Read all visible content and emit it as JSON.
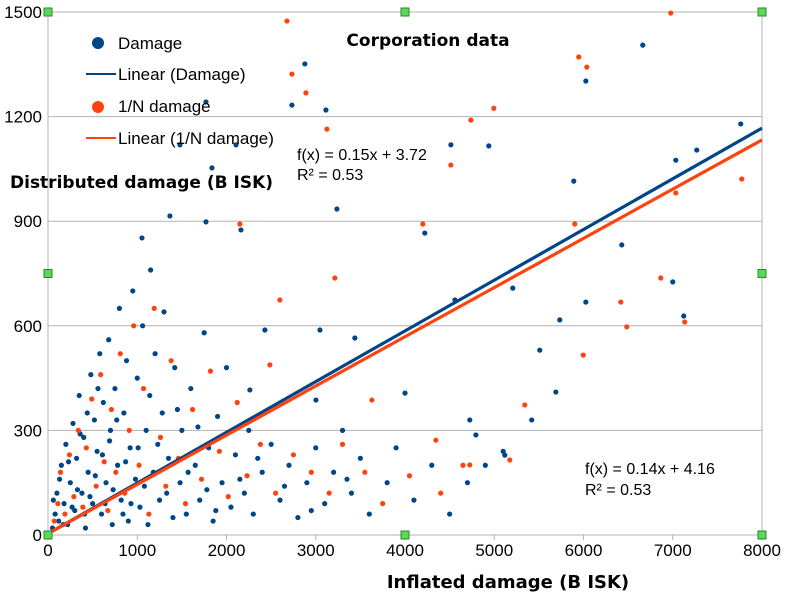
{
  "chart_data": {
    "type": "scatter",
    "title": "Corporation data",
    "xlabel": "Inflated damage (B ISK)",
    "ylabel": "Distributed damage (B ISK)",
    "xlim": [
      0,
      8000
    ],
    "ylim": [
      0,
      1500
    ],
    "xticks": [
      "0",
      "1000",
      "2000",
      "3000",
      "4000",
      "5000",
      "6000",
      "7000",
      "8000"
    ],
    "yticks": [
      "0",
      "300",
      "600",
      "900",
      "1200",
      "1500"
    ],
    "grid": "horizontal",
    "legend_placement": "top-left",
    "legend": [
      "Damage",
      "Linear (Damage)",
      "1/N damage",
      "Linear (1/N damage)"
    ],
    "series": [
      {
        "name": "Damage",
        "color": "#004586",
        "points": [
          [
            6664,
            1405
          ],
          [
            2878,
            1351
          ],
          [
            2733,
            1233
          ],
          [
            3114,
            1219
          ],
          [
            6026,
            1302
          ],
          [
            4939,
            1116
          ],
          [
            4514,
            1119
          ],
          [
            7269,
            1104
          ],
          [
            7034,
            1075
          ],
          [
            7762,
            1179
          ],
          [
            5891,
            1015
          ],
          [
            6429,
            832
          ],
          [
            7000,
            726
          ],
          [
            7123,
            628
          ],
          [
            3237,
            935
          ],
          [
            4222,
            866
          ],
          [
            1053,
            852
          ],
          [
            1366,
            915
          ],
          [
            1770,
            898
          ],
          [
            2162,
            875
          ],
          [
            2106,
            1119
          ],
          [
            1770,
            1242
          ],
          [
            1837,
            1053
          ],
          [
            1478,
            1119
          ],
          [
            6026,
            668
          ],
          [
            5734,
            617
          ],
          [
            5510,
            530
          ],
          [
            5690,
            410
          ],
          [
            5420,
            330
          ],
          [
            5208,
            708
          ],
          [
            4560,
            674
          ],
          [
            3047,
            588
          ],
          [
            3438,
            565
          ],
          [
            2430,
            588
          ],
          [
            2262,
            416
          ],
          [
            3002,
            387
          ],
          [
            4000,
            407
          ],
          [
            4726,
            330
          ],
          [
            4794,
            287
          ],
          [
            5118,
            229
          ],
          [
            50,
            20
          ],
          [
            80,
            60
          ],
          [
            100,
            120
          ],
          [
            120,
            40
          ],
          [
            150,
            200
          ],
          [
            180,
            90
          ],
          [
            200,
            260
          ],
          [
            220,
            30
          ],
          [
            250,
            150
          ],
          [
            280,
            320
          ],
          [
            300,
            70
          ],
          [
            320,
            220
          ],
          [
            350,
            400
          ],
          [
            380,
            120
          ],
          [
            400,
            280
          ],
          [
            420,
            20
          ],
          [
            450,
            180
          ],
          [
            480,
            460
          ],
          [
            500,
            90
          ],
          [
            520,
            330
          ],
          [
            550,
            240
          ],
          [
            580,
            520
          ],
          [
            600,
            60
          ],
          [
            620,
            380
          ],
          [
            650,
            150
          ],
          [
            680,
            560
          ],
          [
            700,
            300
          ],
          [
            720,
            30
          ],
          [
            750,
            420
          ],
          [
            780,
            200
          ],
          [
            800,
            650
          ],
          [
            820,
            100
          ],
          [
            850,
            350
          ],
          [
            880,
            500
          ],
          [
            900,
            40
          ],
          [
            920,
            250
          ],
          [
            950,
            700
          ],
          [
            980,
            160
          ],
          [
            1000,
            450
          ],
          [
            1030,
            80
          ],
          [
            1060,
            600
          ],
          [
            1100,
            300
          ],
          [
            1120,
            30
          ],
          [
            1150,
            760
          ],
          [
            1180,
            180
          ],
          [
            1200,
            520
          ],
          [
            1250,
            100
          ],
          [
            1280,
            350
          ],
          [
            1300,
            640
          ],
          [
            1350,
            220
          ],
          [
            1400,
            50
          ],
          [
            1420,
            480
          ],
          [
            1480,
            150
          ],
          [
            1500,
            300
          ],
          [
            1550,
            60
          ],
          [
            1600,
            420
          ],
          [
            1650,
            200
          ],
          [
            1700,
            100
          ],
          [
            1750,
            580
          ],
          [
            1800,
            250
          ],
          [
            1850,
            40
          ],
          [
            1900,
            340
          ],
          [
            1950,
            150
          ],
          [
            2000,
            480
          ],
          [
            2050,
            80
          ],
          [
            2100,
            230
          ],
          [
            2200,
            120
          ],
          [
            2250,
            300
          ],
          [
            2300,
            60
          ],
          [
            2400,
            180
          ],
          [
            2500,
            260
          ],
          [
            2600,
            100
          ],
          [
            2700,
            200
          ],
          [
            2800,
            50
          ],
          [
            2900,
            150
          ],
          [
            3000,
            250
          ],
          [
            3100,
            90
          ],
          [
            3200,
            180
          ],
          [
            3300,
            300
          ],
          [
            3400,
            120
          ],
          [
            3500,
            220
          ],
          [
            3600,
            60
          ],
          [
            3800,
            150
          ],
          [
            3900,
            250
          ],
          [
            4100,
            100
          ],
          [
            4300,
            200
          ],
          [
            4500,
            60
          ],
          [
            4700,
            150
          ],
          [
            4900,
            200
          ],
          [
            5100,
            240
          ],
          [
            60,
            100
          ],
          [
            130,
            160
          ],
          [
            170,
            30
          ],
          [
            230,
            210
          ],
          [
            270,
            80
          ],
          [
            330,
            130
          ],
          [
            360,
            290
          ],
          [
            410,
            60
          ],
          [
            440,
            350
          ],
          [
            470,
            110
          ],
          [
            530,
            170
          ],
          [
            560,
            420
          ],
          [
            610,
            230
          ],
          [
            640,
            90
          ],
          [
            690,
            270
          ],
          [
            730,
            130
          ],
          [
            770,
            330
          ],
          [
            840,
            60
          ],
          [
            870,
            210
          ],
          [
            930,
            90
          ],
          [
            1010,
            250
          ],
          [
            1080,
            140
          ],
          [
            1140,
            400
          ],
          [
            1230,
            260
          ],
          [
            1330,
            120
          ],
          [
            1450,
            360
          ],
          [
            1570,
            180
          ],
          [
            1680,
            310
          ],
          [
            1780,
            130
          ],
          [
            1880,
            70
          ],
          [
            2150,
            160
          ],
          [
            2350,
            220
          ],
          [
            2650,
            140
          ],
          [
            2950,
            70
          ],
          [
            3350,
            160
          ]
        ]
      },
      {
        "name": "1/N damage",
        "color": "#ff420e",
        "points": [
          [
            2677,
            1474
          ],
          [
            6978,
            1497
          ],
          [
            5947,
            1371
          ],
          [
            6037,
            1342
          ],
          [
            4995,
            1224
          ],
          [
            2733,
            1322
          ],
          [
            2890,
            1268
          ],
          [
            4738,
            1190
          ],
          [
            4514,
            1061
          ],
          [
            3125,
            1164
          ],
          [
            2150,
            892
          ],
          [
            4200,
            892
          ],
          [
            5902,
            892
          ],
          [
            7034,
            981
          ],
          [
            6866,
            737
          ],
          [
            6418,
            668
          ],
          [
            6485,
            597
          ],
          [
            7134,
            611
          ],
          [
            3214,
            737
          ],
          [
            2598,
            674
          ],
          [
            5997,
            516
          ],
          [
            5342,
            373
          ],
          [
            7773,
            1021
          ],
          [
            2486,
            488
          ],
          [
            3629,
            387
          ],
          [
            4346,
            272
          ],
          [
            4726,
            201
          ],
          [
            5174,
            215
          ],
          [
            70,
            40
          ],
          [
            110,
            90
          ],
          [
            140,
            180
          ],
          [
            190,
            60
          ],
          [
            240,
            230
          ],
          [
            290,
            110
          ],
          [
            340,
            300
          ],
          [
            390,
            80
          ],
          [
            430,
            250
          ],
          [
            490,
            390
          ],
          [
            540,
            140
          ],
          [
            590,
            460
          ],
          [
            630,
            210
          ],
          [
            670,
            70
          ],
          [
            710,
            360
          ],
          [
            760,
            180
          ],
          [
            810,
            520
          ],
          [
            860,
            120
          ],
          [
            910,
            300
          ],
          [
            960,
            600
          ],
          [
            1020,
            200
          ],
          [
            1070,
            420
          ],
          [
            1130,
            60
          ],
          [
            1190,
            650
          ],
          [
            1260,
            280
          ],
          [
            1320,
            140
          ],
          [
            1380,
            500
          ],
          [
            1460,
            220
          ],
          [
            1540,
            90
          ],
          [
            1620,
            360
          ],
          [
            1720,
            160
          ],
          [
            1820,
            470
          ],
          [
            1920,
            240
          ],
          [
            2020,
            110
          ],
          [
            2120,
            380
          ],
          [
            2230,
            170
          ],
          [
            2380,
            260
          ],
          [
            2550,
            120
          ],
          [
            2750,
            230
          ],
          [
            2950,
            180
          ],
          [
            3150,
            120
          ],
          [
            3300,
            260
          ],
          [
            3550,
            180
          ],
          [
            3750,
            90
          ],
          [
            4050,
            170
          ],
          [
            4400,
            120
          ],
          [
            4650,
            200
          ]
        ]
      }
    ],
    "trendlines": [
      {
        "name": "Linear (Damage)",
        "color": "#004586",
        "equation": "f(x) = 0.15x + 3.72",
        "r2": "R² = 0.53",
        "from": [
          0,
          3.72
        ],
        "to": [
          8000,
          1167
        ]
      },
      {
        "name": "Linear (1/N damage)",
        "color": "#ff420e",
        "equation": "f(x) = 0.14x + 4.16",
        "r2": "R² = 0.53",
        "from": [
          0,
          4.16
        ],
        "to": [
          8000,
          1133
        ]
      }
    ]
  }
}
